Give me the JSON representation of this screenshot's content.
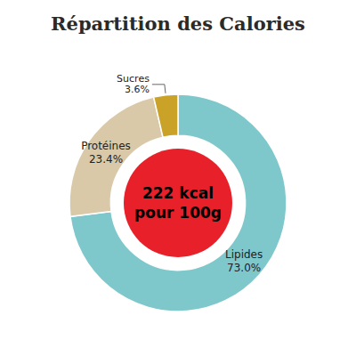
{
  "chart_data": {
    "type": "pie",
    "title": "Répartition des Calories",
    "categories": [
      "Lipides",
      "Protéines",
      "Sucres"
    ],
    "values": [
      73.0,
      23.4,
      3.6
    ],
    "value_labels": [
      "73.0%",
      "23.4%",
      "3.6%"
    ],
    "data_labels": true,
    "colors": [
      "#7ec8cb",
      "#d9c9a8",
      "#c9a227"
    ],
    "annotations": [
      "222 kcal",
      "pour 100g"
    ],
    "center_color": "#e8202a"
  }
}
